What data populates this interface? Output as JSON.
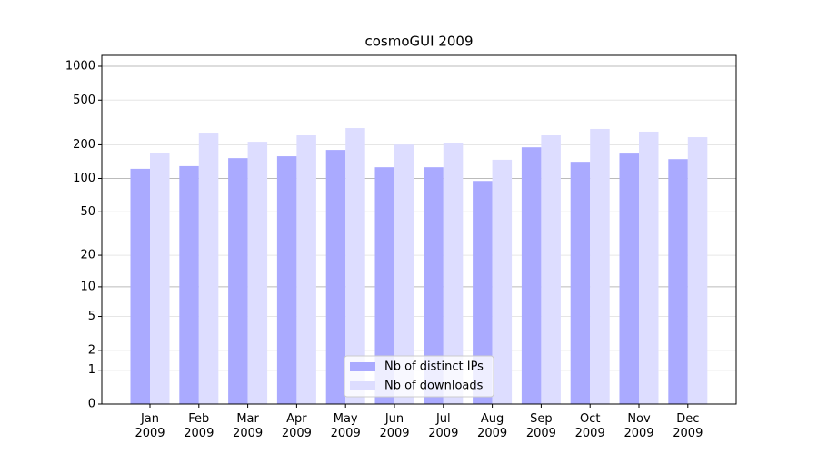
{
  "chart_data": {
    "type": "bar",
    "title": "cosmoGUI 2009",
    "categories": [
      "Jan\n2009",
      "Feb\n2009",
      "Mar\n2009",
      "Apr\n2009",
      "May\n2009",
      "Jun\n2009",
      "Jul\n2009",
      "Aug\n2009",
      "Sep\n2009",
      "Oct\n2009",
      "Nov\n2009",
      "Dec\n2009"
    ],
    "series": [
      {
        "name": "Nb of distinct IPs",
        "color": "#aaaaff",
        "values": [
          122,
          129,
          152,
          158,
          180,
          126,
          126,
          95,
          190,
          141,
          167,
          149
        ]
      },
      {
        "name": "Nb of downloads",
        "color": "#ddddff",
        "values": [
          170,
          252,
          213,
          243,
          282,
          201,
          206,
          147,
          243,
          277,
          262,
          234
        ]
      }
    ],
    "yscale": "log1p",
    "ylim": [
      0,
      1250
    ],
    "yticks": [
      0,
      1,
      2,
      5,
      10,
      20,
      50,
      100,
      200,
      500,
      1000
    ],
    "grid": true,
    "legend": "lower center"
  }
}
